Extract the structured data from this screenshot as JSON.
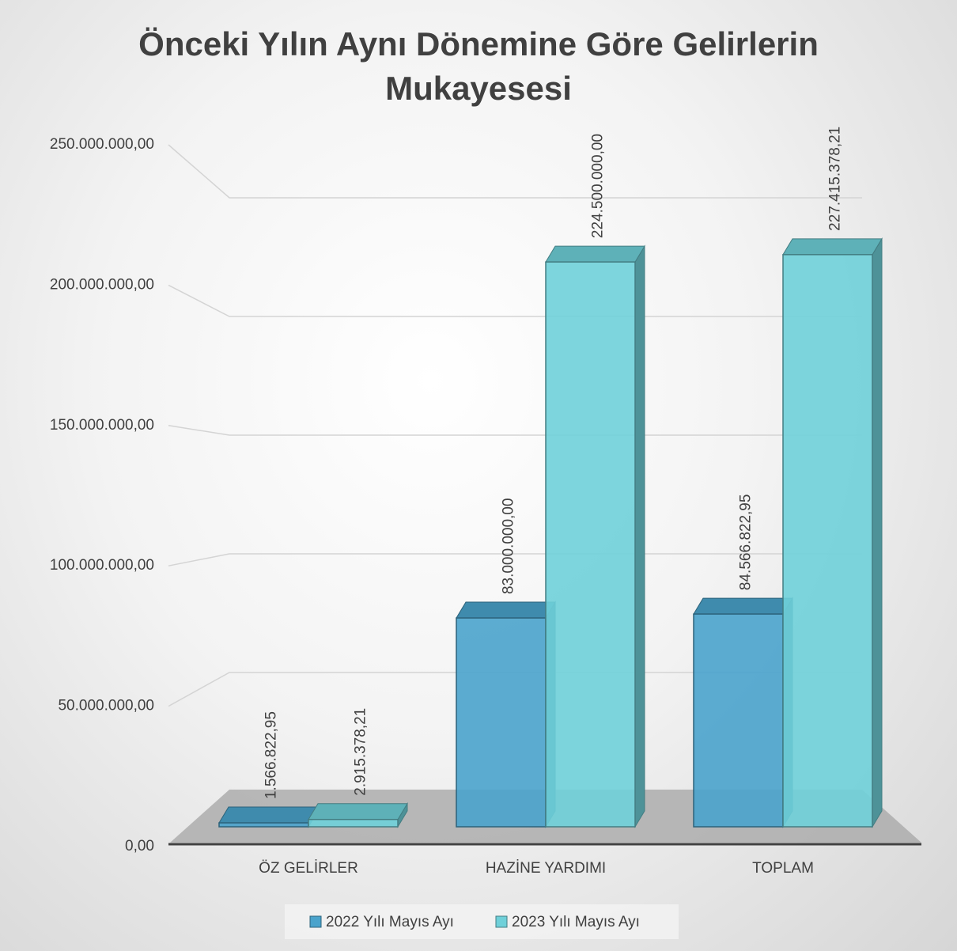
{
  "chart_data": {
    "type": "bar3d",
    "title": "Önceki Yılın Aynı Dönemine Göre Gelirlerin Mukayesesi",
    "categories": [
      "ÖZ GELİRLER",
      "HAZİNE YARDIMI",
      "TOPLAM"
    ],
    "series": [
      {
        "name": "2022 Yılı Mayıs Ayı",
        "color": "#4aa3cc",
        "values": [
          1566822.95,
          83000000,
          84566822.95
        ],
        "value_labels": [
          "1.566.822,95",
          "83.000.000,00",
          "84.566.822,95"
        ]
      },
      {
        "name": "2023 Yılı Mayıs Ayı",
        "color": "#6fd0d9",
        "values": [
          2915378.21,
          224500000,
          227415378.21
        ],
        "value_labels": [
          "2.915.378,21",
          "224.500.000,00",
          "227.415.378,21"
        ]
      }
    ],
    "ylim": [
      0,
      250000000
    ],
    "yticks": [
      {
        "value": 0,
        "label": "0,00"
      },
      {
        "value": 50000000,
        "label": "50.000.000,00"
      },
      {
        "value": 100000000,
        "label": "100.000.000,00"
      },
      {
        "value": 150000000,
        "label": "150.000.000,00"
      },
      {
        "value": 200000000,
        "label": "200.000.000,00"
      },
      {
        "value": 250000000,
        "label": "250.000.000,00"
      }
    ],
    "grid": true,
    "legend": "bottom"
  }
}
